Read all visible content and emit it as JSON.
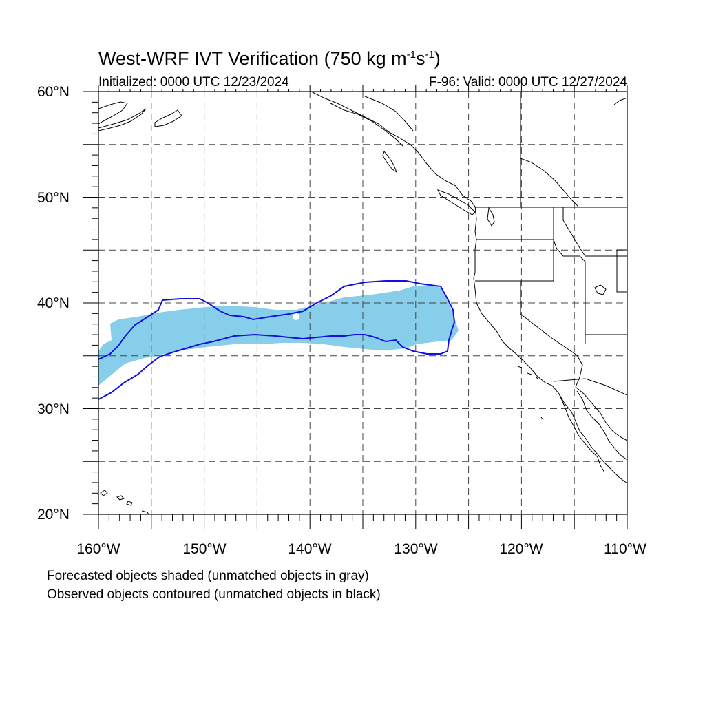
{
  "title": {
    "prefix": "West-WRF IVT Verification (750 kg m",
    "sup1": "-1",
    "mid": "s",
    "sup2": "-1",
    "suffix": ")"
  },
  "initialized": "Initialized: 0000 UTC 12/23/2024",
  "valid": "F-96: Valid: 0000 UTC 12/27/2024",
  "lat_labels": [
    "60°N",
    "50°N",
    "40°N",
    "30°N",
    "20°N"
  ],
  "lon_labels": [
    "160°W",
    "150°W",
    "140°W",
    "130°W",
    "120°W",
    "110°W"
  ],
  "footnotes": [
    "Forecasted objects shaded (unmatched objects in gray)",
    "Observed objects contoured (unmatched objects in black)"
  ],
  "map": {
    "lon_range": [
      -160,
      -110
    ],
    "lat_range": [
      20,
      60
    ],
    "grid_spacing_deg": 5,
    "grid_style": "dashed",
    "forecast_fill_color": "#87ceeb",
    "observed_contour_color": "#1010e0",
    "coastline_color": "#000000"
  }
}
